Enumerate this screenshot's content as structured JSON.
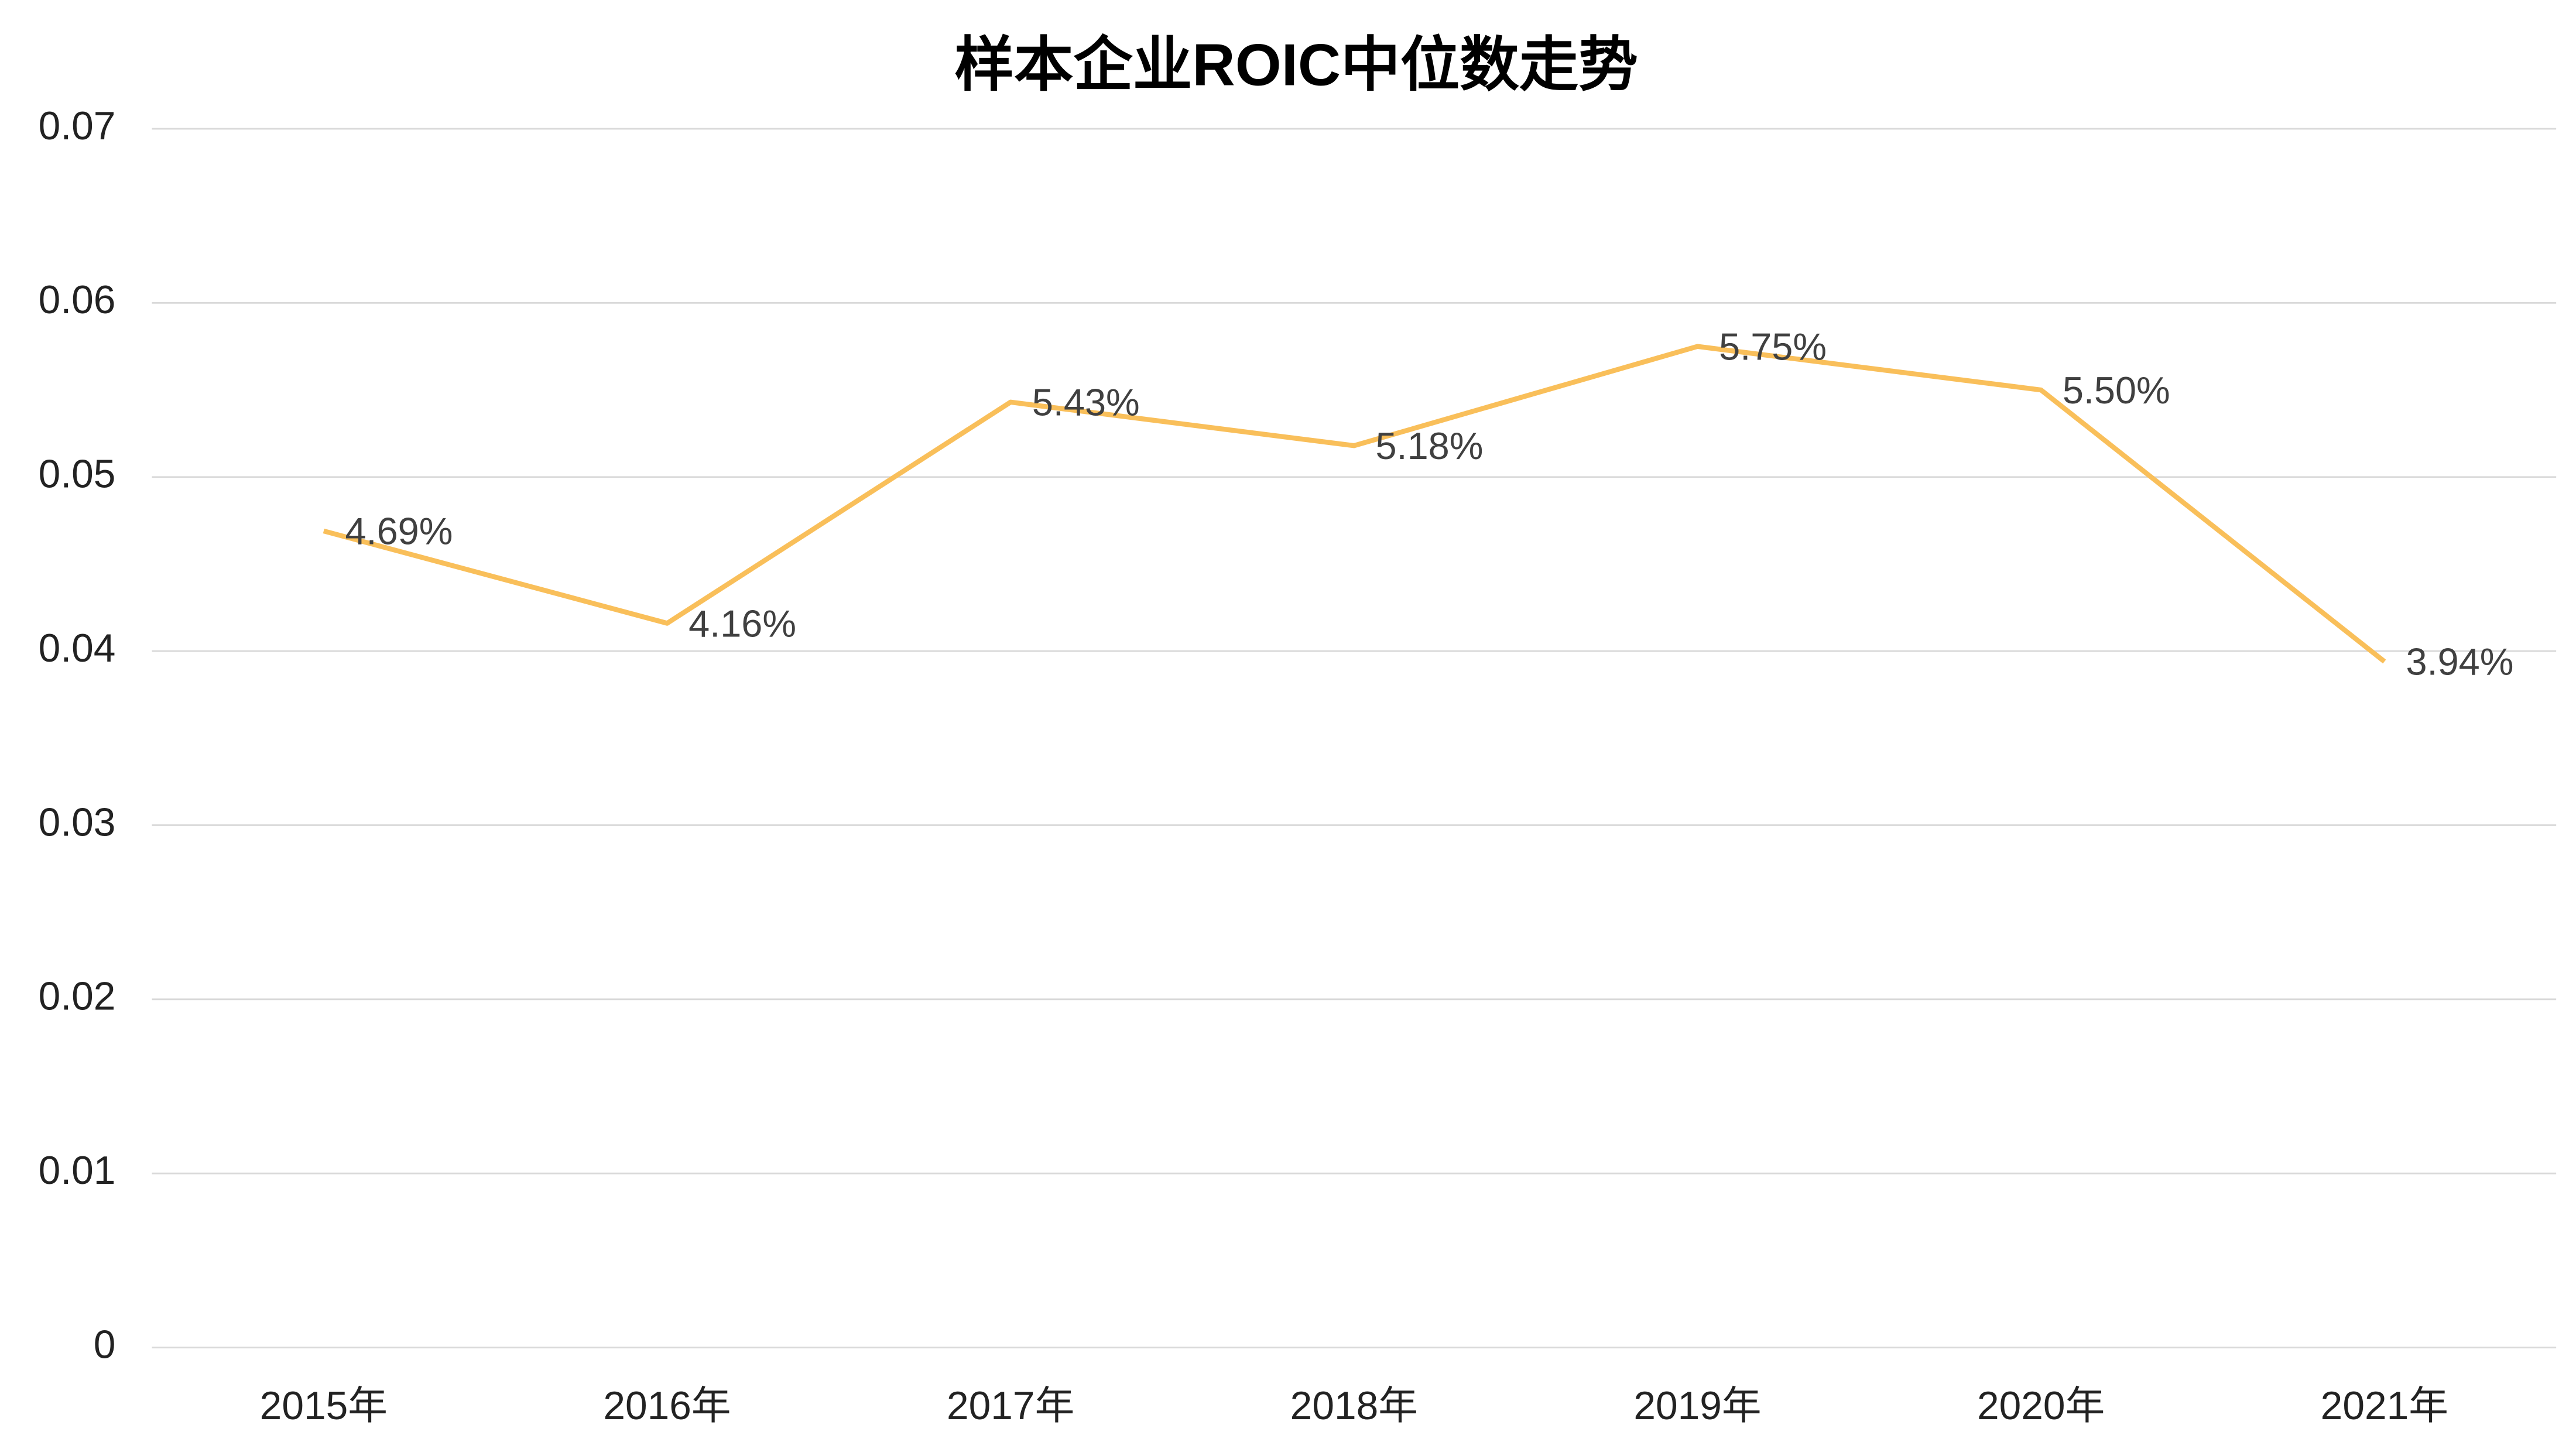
{
  "chart_data": {
    "type": "line",
    "title": "样本企业ROIC中位数走势",
    "categories": [
      "2015年",
      "2016年",
      "2017年",
      "2018年",
      "2019年",
      "2020年",
      "2021年"
    ],
    "values": [
      0.0469,
      0.0416,
      0.0543,
      0.0518,
      0.0575,
      0.055,
      0.0394
    ],
    "value_labels": [
      "4.69%",
      "4.16%",
      "5.43%",
      "5.18%",
      "5.75%",
      "5.50%",
      "3.94%"
    ],
    "color": "#f9bf5a",
    "ylim": [
      0,
      0.07
    ],
    "yticks": [
      0,
      0.01,
      0.02,
      0.03,
      0.04,
      0.05,
      0.06,
      0.07
    ],
    "grid": true
  }
}
